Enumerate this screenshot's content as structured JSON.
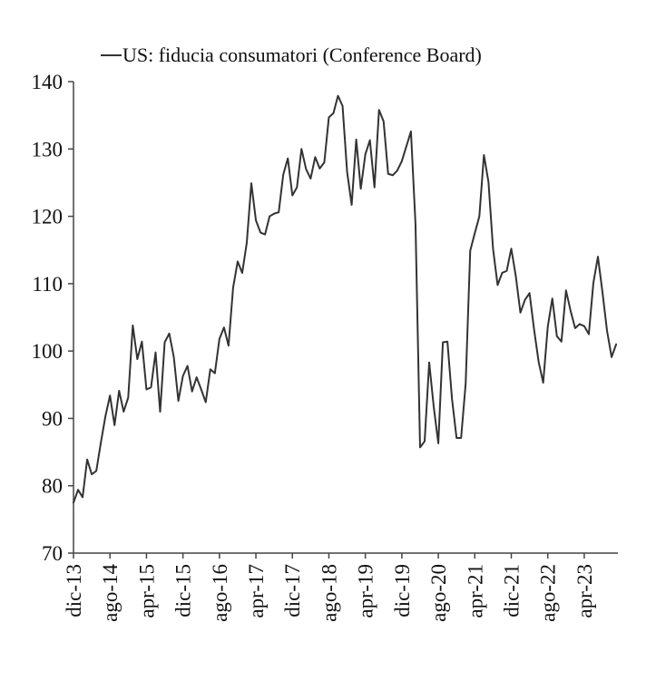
{
  "chart_data": {
    "type": "line",
    "title": "",
    "xlabel": "",
    "ylabel": "",
    "ylim": [
      70,
      140
    ],
    "y_ticks": [
      70,
      80,
      90,
      100,
      110,
      120,
      130,
      140
    ],
    "x_tick_labels": [
      "dic-13",
      "ago-14",
      "apr-15",
      "dic-15",
      "ago-16",
      "apr-17",
      "dic-17",
      "ago-18",
      "apr-19",
      "dic-19",
      "ago-20",
      "apr-21",
      "dic-21",
      "ago-22",
      "apr-23"
    ],
    "grid": false,
    "legend_position": "top",
    "x_start": "2013-12",
    "x_frequency": "monthly",
    "series": [
      {
        "name": "US: fiducia consumatori (Conference Board)",
        "color": "#333333",
        "values": [
          77.5,
          79.4,
          78.3,
          83.9,
          81.7,
          82.2,
          86.4,
          90.3,
          93.4,
          89.0,
          94.1,
          91.0,
          93.1,
          103.8,
          98.8,
          101.4,
          94.3,
          94.6,
          99.8,
          91.0,
          101.3,
          102.6,
          99.1,
          92.6,
          96.3,
          97.8,
          94.0,
          96.1,
          94.3,
          92.4,
          97.3,
          96.7,
          101.8,
          103.5,
          100.8,
          109.4,
          113.3,
          111.6,
          116.1,
          124.9,
          119.4,
          117.6,
          117.3,
          120.0,
          120.4,
          120.6,
          126.2,
          128.6,
          123.1,
          124.3,
          130.0,
          127.0,
          125.6,
          128.8,
          127.1,
          128.0,
          134.7,
          135.3,
          137.9,
          136.4,
          126.6,
          121.7,
          131.4,
          124.1,
          129.2,
          131.3,
          124.3,
          135.8,
          134.1,
          126.3,
          126.1,
          126.8,
          128.2,
          130.4,
          132.6,
          118.8,
          85.7,
          86.6,
          98.3,
          91.7,
          86.3,
          101.3,
          101.4,
          92.9,
          87.1,
          87.1,
          95.2,
          114.9,
          117.5,
          120.0,
          129.1,
          125.1,
          115.2,
          109.8,
          111.6,
          111.9,
          115.2,
          111.1,
          105.7,
          107.6,
          108.6,
          103.2,
          98.4,
          95.3,
          103.6,
          107.8,
          102.2,
          101.4,
          109.0,
          106.0,
          103.4,
          104.0,
          103.7,
          102.5,
          110.1,
          114.0,
          108.7,
          103.0,
          99.1,
          101.0
        ]
      }
    ]
  }
}
